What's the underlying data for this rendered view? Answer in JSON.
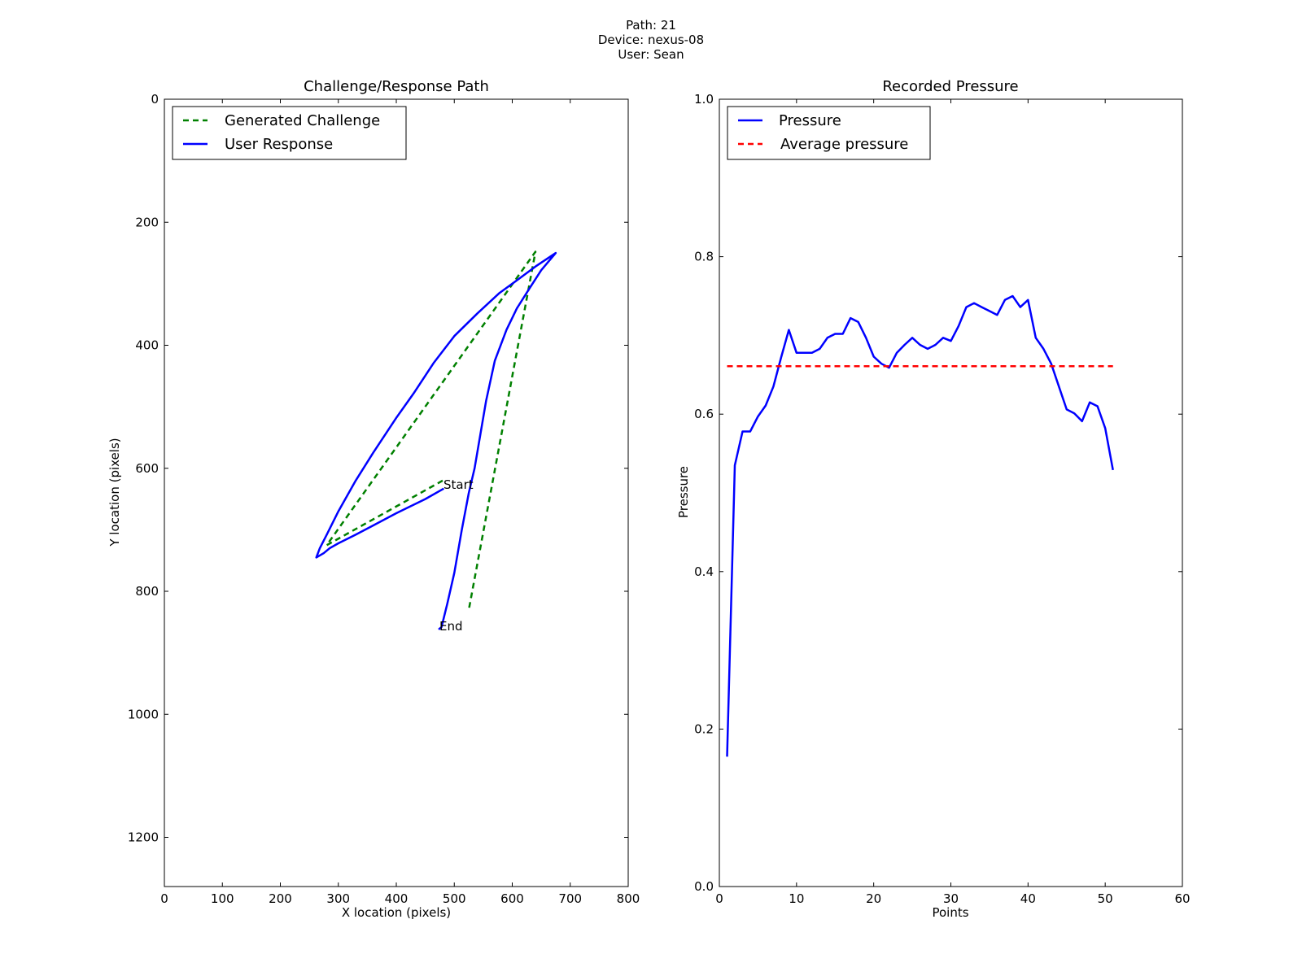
{
  "figure": {
    "suptitle_lines": [
      "Path: 21",
      "Device: nexus-08",
      "User: Sean"
    ]
  },
  "chart_data": [
    {
      "type": "line",
      "title": "Challenge/Response Path",
      "xlabel": "X location (pixels)",
      "ylabel": "Y location (pixels)",
      "xlim": [
        0,
        800
      ],
      "ylim": [
        1280,
        0
      ],
      "y_inverted": true,
      "xticks": [
        0,
        100,
        200,
        300,
        400,
        500,
        600,
        700,
        800
      ],
      "yticks": [
        0,
        200,
        400,
        600,
        800,
        1000,
        1200
      ],
      "legend": {
        "placement": "upper-left"
      },
      "series": [
        {
          "name": "Generated Challenge",
          "style": "dashed",
          "color": "#008000",
          "points": [
            [
              480,
              620
            ],
            [
              280,
              725
            ],
            [
              640,
              248
            ],
            [
              525,
              830
            ]
          ]
        },
        {
          "name": "User Response",
          "style": "solid",
          "color": "#0000ff",
          "points": [
            [
              482,
              633
            ],
            [
              450,
              650
            ],
            [
              400,
              673
            ],
            [
              360,
              693
            ],
            [
              330,
              708
            ],
            [
              300,
              722
            ],
            [
              285,
              730
            ],
            [
              275,
              738
            ],
            [
              262,
              745
            ],
            [
              268,
              730
            ],
            [
              280,
              708
            ],
            [
              300,
              670
            ],
            [
              330,
              620
            ],
            [
              360,
              575
            ],
            [
              400,
              518
            ],
            [
              430,
              478
            ],
            [
              465,
              428
            ],
            [
              500,
              385
            ],
            [
              540,
              348
            ],
            [
              578,
              315
            ],
            [
              610,
              293
            ],
            [
              640,
              272
            ],
            [
              675,
              250
            ],
            [
              650,
              278
            ],
            [
              628,
              310
            ],
            [
              608,
              340
            ],
            [
              590,
              375
            ],
            [
              570,
              425
            ],
            [
              555,
              490
            ],
            [
              545,
              545
            ],
            [
              535,
              600
            ],
            [
              525,
              640
            ],
            [
              513,
              700
            ],
            [
              500,
              770
            ],
            [
              488,
              820
            ],
            [
              478,
              858
            ],
            [
              473,
              862
            ]
          ]
        }
      ],
      "annotations": [
        {
          "text": "Start",
          "x": 480,
          "y": 620
        },
        {
          "text": "End",
          "x": 473,
          "y": 850
        }
      ]
    },
    {
      "type": "line",
      "title": "Recorded Pressure",
      "xlabel": "Points",
      "ylabel": "Pressure",
      "xlim": [
        0,
        60
      ],
      "ylim": [
        0.0,
        1.0
      ],
      "xticks": [
        0,
        10,
        20,
        30,
        40,
        50,
        60
      ],
      "yticks": [
        0.0,
        0.2,
        0.4,
        0.6,
        0.8,
        1.0
      ],
      "ytick_labels": [
        "0.0",
        "0.2",
        "0.4",
        "0.6",
        "0.8",
        "1.0"
      ],
      "legend": {
        "placement": "upper-left"
      },
      "series": [
        {
          "name": "Pressure",
          "style": "solid",
          "color": "#0000ff",
          "x": [
            1,
            2,
            3,
            4,
            5,
            6,
            7,
            8,
            9,
            10,
            11,
            12,
            13,
            14,
            15,
            16,
            17,
            18,
            19,
            20,
            21,
            22,
            23,
            24,
            25,
            26,
            27,
            28,
            29,
            30,
            31,
            32,
            33,
            34,
            35,
            36,
            37,
            38,
            39,
            40,
            41,
            42,
            43,
            44,
            45,
            46,
            47,
            48,
            49,
            50,
            51
          ],
          "y": [
            0.165,
            0.535,
            0.578,
            0.578,
            0.597,
            0.611,
            0.635,
            0.672,
            0.707,
            0.678,
            0.678,
            0.678,
            0.683,
            0.697,
            0.702,
            0.702,
            0.722,
            0.717,
            0.697,
            0.673,
            0.664,
            0.659,
            0.678,
            0.688,
            0.697,
            0.688,
            0.683,
            0.688,
            0.697,
            0.693,
            0.712,
            0.736,
            0.741,
            0.736,
            0.731,
            0.726,
            0.745,
            0.75,
            0.736,
            0.745,
            0.697,
            0.683,
            0.664,
            0.635,
            0.606,
            0.601,
            0.591,
            0.615,
            0.61,
            0.582,
            0.529
          ]
        },
        {
          "name": "Average pressure",
          "style": "dashed",
          "color": "#ff0000",
          "x": [
            1,
            51
          ],
          "y": [
            0.661,
            0.661
          ]
        }
      ]
    }
  ]
}
